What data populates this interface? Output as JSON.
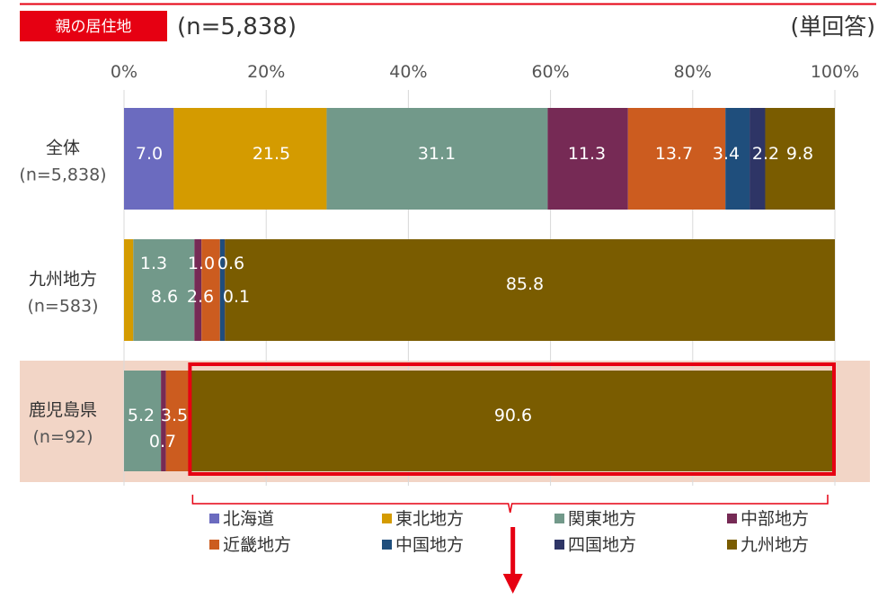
{
  "header": {
    "badge": "親の居住地",
    "sample": "(n=5,838)",
    "note": "(単回答)",
    "accent_color": "#e60012"
  },
  "chart_data": {
    "type": "bar",
    "orientation": "horizontal",
    "stacked": "percent",
    "xlim": [
      0,
      100
    ],
    "x_ticks": [
      "0%",
      "20%",
      "40%",
      "60%",
      "80%",
      "100%"
    ],
    "grid": true,
    "legend_position": "bottom",
    "categories": [
      {
        "name": "全体",
        "n": "(n=5,838)"
      },
      {
        "name": "九州地方",
        "n": "(n=583)"
      },
      {
        "name": "鹿児島県",
        "n": "(n=92)"
      }
    ],
    "highlighted_category": "鹿児島県",
    "highlighted_series": "九州地方",
    "series": [
      {
        "name": "北海道",
        "color": "#6b6bbf",
        "values": [
          7.0,
          0.0,
          0.0
        ]
      },
      {
        "name": "東北地方",
        "color": "#d49b00",
        "values": [
          21.5,
          1.3,
          0.0
        ]
      },
      {
        "name": "関東地方",
        "color": "#72998a",
        "values": [
          31.1,
          8.6,
          5.2
        ]
      },
      {
        "name": "中部地方",
        "color": "#762a55",
        "values": [
          11.3,
          1.0,
          0.7
        ]
      },
      {
        "name": "近畿地方",
        "color": "#cc5c1f",
        "values": [
          13.7,
          2.6,
          3.5
        ]
      },
      {
        "name": "中国地方",
        "color": "#1f4e7c",
        "values": [
          3.4,
          0.6,
          0.0
        ]
      },
      {
        "name": "四国地方",
        "color": "#2e3566",
        "values": [
          2.2,
          0.1,
          0.0
        ]
      },
      {
        "name": "九州地方",
        "color": "#7a5c00",
        "values": [
          9.8,
          85.8,
          90.6
        ]
      }
    ],
    "data_labels": [
      [
        "7.0",
        "21.5",
        "31.1",
        "11.3",
        "13.7",
        "3.4",
        "2.2",
        "9.8"
      ],
      [
        "",
        "1.3",
        "8.6",
        "1.0",
        "2.6",
        "0.6",
        "0.1",
        "85.8"
      ],
      [
        "",
        "",
        "5.2",
        "0.7",
        "3.5",
        "",
        "",
        "90.6"
      ]
    ]
  }
}
